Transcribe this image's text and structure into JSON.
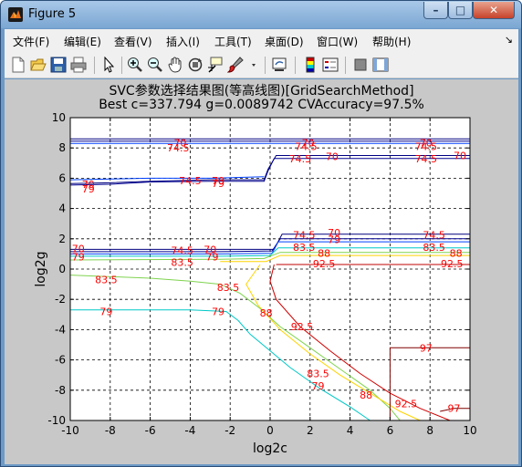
{
  "window": {
    "title": "Figure 5",
    "minimize_label": "–",
    "maximize_label": "□",
    "close_label": "✕"
  },
  "menu": {
    "items": [
      "文件(F)",
      "编辑(E)",
      "查看(V)",
      "插入(I)",
      "工具(T)",
      "桌面(D)",
      "窗口(W)",
      "帮助(H)"
    ],
    "overflow_arrow": "↘"
  },
  "toolbar": {
    "icons": [
      "new-figure-icon",
      "open-file-icon",
      "save-icon",
      "print-icon",
      "pointer-icon",
      "zoom-in-icon",
      "zoom-out-icon",
      "pan-hand-icon",
      "rotate-3d-icon",
      "data-cursor-icon",
      "brush-icon",
      "link-plot-icon",
      "colorbar-icon",
      "legend-icon",
      "hide-plot-tools-icon",
      "show-plot-tools-icon"
    ]
  },
  "figure": {
    "title_line1": "SVC参数选择结果图(等高线图)[GridSearchMethod]",
    "title_line2": "Best c=337.794 g=0.0089742 CVAccuracy=97.5%"
  },
  "chart_data": {
    "type": "contour",
    "title": "SVC参数选择结果图(等高线图)[GridSearchMethod]",
    "subtitle": "Best c=337.794 g=0.0089742 CVAccuracy=97.5%",
    "xlabel": "log2c",
    "ylabel": "log2g",
    "xlim": [
      -10,
      10
    ],
    "ylim": [
      -10,
      10
    ],
    "xticks": [
      -10,
      -8,
      -6,
      -4,
      -2,
      0,
      2,
      4,
      6,
      8,
      10
    ],
    "yticks": [
      -10,
      -8,
      -6,
      -4,
      -2,
      0,
      2,
      4,
      6,
      8,
      10
    ],
    "grid": true,
    "levels": [
      70,
      74.5,
      79,
      83.5,
      88,
      92.5,
      97
    ],
    "colors": {
      "axes_bg": "#ffffff",
      "figure_bg": "#c8c8c8",
      "label_color": "#ff0000"
    },
    "contours": [
      {
        "level": 70,
        "color": "#000080",
        "points": [
          [
            -10,
            8.6
          ],
          [
            10,
            8.6
          ]
        ]
      },
      {
        "level": 74.5,
        "color": "#00008f",
        "points": [
          [
            -10,
            8.45
          ],
          [
            10,
            8.45
          ]
        ]
      },
      {
        "level": 79,
        "color": "#0040ff",
        "points": [
          [
            -10,
            8.3
          ],
          [
            10,
            8.3
          ]
        ]
      },
      {
        "level": 70,
        "color": "#000080",
        "points": [
          [
            -10,
            5.65
          ],
          [
            -8,
            5.7
          ],
          [
            -6,
            5.8
          ],
          [
            -3,
            5.9
          ],
          [
            -0.3,
            5.9
          ],
          [
            -0.1,
            6.6
          ],
          [
            0.3,
            7.5
          ],
          [
            10,
            7.5
          ]
        ]
      },
      {
        "level": 74.5,
        "color": "#00008f",
        "points": [
          [
            -10,
            5.55
          ],
          [
            -8,
            5.6
          ],
          [
            -6,
            5.75
          ],
          [
            -3,
            5.8
          ],
          [
            -0.3,
            5.8
          ],
          [
            -0.1,
            6.5
          ],
          [
            0.2,
            7.3
          ],
          [
            10,
            7.3
          ]
        ]
      },
      {
        "level": 79,
        "color": "#0040ff",
        "points": [
          [
            -10,
            5.9
          ],
          [
            -6,
            6.0
          ],
          [
            -3,
            6.0
          ],
          [
            -0.3,
            6.1
          ]
        ]
      },
      {
        "level": 70,
        "color": "#000080",
        "points": [
          [
            -10,
            1.3
          ],
          [
            -2.5,
            1.3
          ],
          [
            0.2,
            1.3
          ],
          [
            0.6,
            2.3
          ],
          [
            10,
            2.3
          ]
        ]
      },
      {
        "level": 74.5,
        "color": "#00008f",
        "points": [
          [
            -10,
            1.15
          ],
          [
            -2.5,
            1.15
          ],
          [
            0.1,
            1.2
          ],
          [
            0.5,
            2.0
          ],
          [
            10,
            2.0
          ]
        ]
      },
      {
        "level": 79,
        "color": "#0040ff",
        "points": [
          [
            -10,
            1.0
          ],
          [
            -2.5,
            1.0
          ],
          [
            0.1,
            1.05
          ],
          [
            0.4,
            1.8
          ],
          [
            10,
            1.8
          ]
        ]
      },
      {
        "level": 83.5,
        "color": "#00c8c8",
        "points": [
          [
            -10,
            0.85
          ],
          [
            -2.5,
            0.85
          ],
          [
            0,
            0.9
          ],
          [
            0.4,
            1.4
          ],
          [
            10,
            1.4
          ]
        ]
      },
      {
        "level": 88,
        "color": "#7fd34f",
        "points": [
          [
            -10,
            0.6
          ],
          [
            -2.5,
            0.65
          ],
          [
            -0.3,
            0.7
          ],
          [
            0.5,
            1.1
          ],
          [
            10,
            1.1
          ]
        ]
      },
      {
        "level": 92.5,
        "color": "#ffd400",
        "points": [
          [
            -2.5,
            0.5
          ],
          [
            -0.2,
            0.5
          ],
          [
            0.5,
            0.9
          ],
          [
            10,
            0.9
          ]
        ]
      },
      {
        "level": 97,
        "color": "#c00000",
        "points": [
          [
            0.3,
            0.3
          ],
          [
            10,
            0.3
          ]
        ]
      },
      {
        "level": 83.5,
        "color": "#7fd34f",
        "points": [
          [
            -10,
            -0.4
          ],
          [
            -6,
            -0.6
          ],
          [
            -4,
            -0.8
          ],
          [
            -2.5,
            -1.0
          ],
          [
            -1.5,
            -1.6
          ],
          [
            -0.5,
            -2.6
          ],
          [
            0.5,
            -3.8
          ],
          [
            2,
            -5.2
          ],
          [
            3.5,
            -6.6
          ],
          [
            5,
            -8.0
          ],
          [
            6,
            -9.2
          ],
          [
            6.5,
            -10
          ]
        ]
      },
      {
        "level": 79,
        "color": "#00c8c8",
        "points": [
          [
            -10,
            -2.7
          ],
          [
            -4,
            -2.7
          ],
          [
            -2.2,
            -2.8
          ],
          [
            -1.6,
            -3.4
          ],
          [
            -1.0,
            -4.3
          ],
          [
            0,
            -5.4
          ],
          [
            1,
            -6.5
          ],
          [
            2.5,
            -7.9
          ],
          [
            4,
            -9.1
          ],
          [
            5,
            -10
          ]
        ]
      },
      {
        "level": 88,
        "color": "#ffd400",
        "points": [
          [
            -0.5,
            0.3
          ],
          [
            -1.2,
            -1.0
          ],
          [
            -0.6,
            -2.4
          ],
          [
            0.5,
            -4.0
          ],
          [
            2,
            -5.6
          ],
          [
            3.5,
            -7.0
          ],
          [
            5,
            -8.2
          ],
          [
            6.5,
            -9.4
          ],
          [
            7.5,
            -10
          ]
        ]
      },
      {
        "level": 92.5,
        "color": "#d00000",
        "points": [
          [
            0.2,
            0.3
          ],
          [
            0,
            -0.8
          ],
          [
            0.3,
            -2.0
          ],
          [
            1.5,
            -3.8
          ],
          [
            3,
            -5.4
          ],
          [
            4.5,
            -6.9
          ],
          [
            6,
            -8.2
          ],
          [
            7.5,
            -9.2
          ],
          [
            9,
            -10
          ]
        ]
      },
      {
        "level": 97,
        "color": "#800000",
        "points": [
          [
            6,
            -10
          ],
          [
            6,
            -5.2
          ],
          [
            10,
            -5.2
          ]
        ]
      },
      {
        "level": 97,
        "color": "#800000",
        "points": [
          [
            8.5,
            -9.4
          ],
          [
            9.2,
            -9.2
          ],
          [
            10,
            -9.2
          ]
        ]
      }
    ],
    "labels": [
      {
        "text": "74.5",
        "x": -4.6,
        "y": 8.0
      },
      {
        "text": "70",
        "x": -4.5,
        "y": 8.35
      },
      {
        "text": "74.5",
        "x": 1.8,
        "y": 8.1
      },
      {
        "text": "70",
        "x": 1.9,
        "y": 8.35
      },
      {
        "text": "74.5",
        "x": 7.8,
        "y": 8.1
      },
      {
        "text": "70",
        "x": 7.8,
        "y": 8.35
      },
      {
        "text": "74.5",
        "x": 1.5,
        "y": 7.3
      },
      {
        "text": "70",
        "x": 3.1,
        "y": 7.45
      },
      {
        "text": "74.5",
        "x": 7.8,
        "y": 7.3
      },
      {
        "text": "70",
        "x": 9.5,
        "y": 7.5
      },
      {
        "text": "70",
        "x": -9.1,
        "y": 5.6
      },
      {
        "text": "79",
        "x": -9.1,
        "y": 5.3
      },
      {
        "text": "74.5",
        "x": -4.0,
        "y": 5.85
      },
      {
        "text": "70",
        "x": -2.6,
        "y": 5.85
      },
      {
        "text": "79",
        "x": -2.6,
        "y": 5.65
      },
      {
        "text": "74.5",
        "x": 1.7,
        "y": 2.25
      },
      {
        "text": "70",
        "x": 3.2,
        "y": 2.4
      },
      {
        "text": "79",
        "x": 3.2,
        "y": 1.95
      },
      {
        "text": "74.5",
        "x": 8.2,
        "y": 2.25
      },
      {
        "text": "83.5",
        "x": 1.7,
        "y": 1.45
      },
      {
        "text": "88",
        "x": 2.7,
        "y": 1.05
      },
      {
        "text": "83.5",
        "x": 8.2,
        "y": 1.45
      },
      {
        "text": "88",
        "x": 9.3,
        "y": 1.05
      },
      {
        "text": "92.5",
        "x": 2.7,
        "y": 0.35
      },
      {
        "text": "92.5",
        "x": 9.1,
        "y": 0.35
      },
      {
        "text": "70",
        "x": -9.6,
        "y": 1.35
      },
      {
        "text": "79",
        "x": -9.6,
        "y": 0.8
      },
      {
        "text": "74.5",
        "x": -4.4,
        "y": 1.25
      },
      {
        "text": "70",
        "x": -3.0,
        "y": 1.3
      },
      {
        "text": "83.5",
        "x": -4.4,
        "y": 0.45
      },
      {
        "text": "79",
        "x": -2.9,
        "y": 0.8
      },
      {
        "text": "83.5",
        "x": -8.2,
        "y": -0.7
      },
      {
        "text": "83.5",
        "x": -2.1,
        "y": -1.2
      },
      {
        "text": "79",
        "x": -8.2,
        "y": -2.8
      },
      {
        "text": "79",
        "x": -2.6,
        "y": -2.8
      },
      {
        "text": "88",
        "x": -0.2,
        "y": -2.9
      },
      {
        "text": "92.5",
        "x": 1.6,
        "y": -3.8
      },
      {
        "text": "83.5",
        "x": 2.4,
        "y": -6.9
      },
      {
        "text": "79",
        "x": 2.4,
        "y": -7.7
      },
      {
        "text": "88",
        "x": 4.8,
        "y": -8.3
      },
      {
        "text": "92.5",
        "x": 6.8,
        "y": -8.9
      },
      {
        "text": "97",
        "x": 7.8,
        "y": -5.2
      },
      {
        "text": "97",
        "x": 9.2,
        "y": -9.2
      }
    ]
  }
}
